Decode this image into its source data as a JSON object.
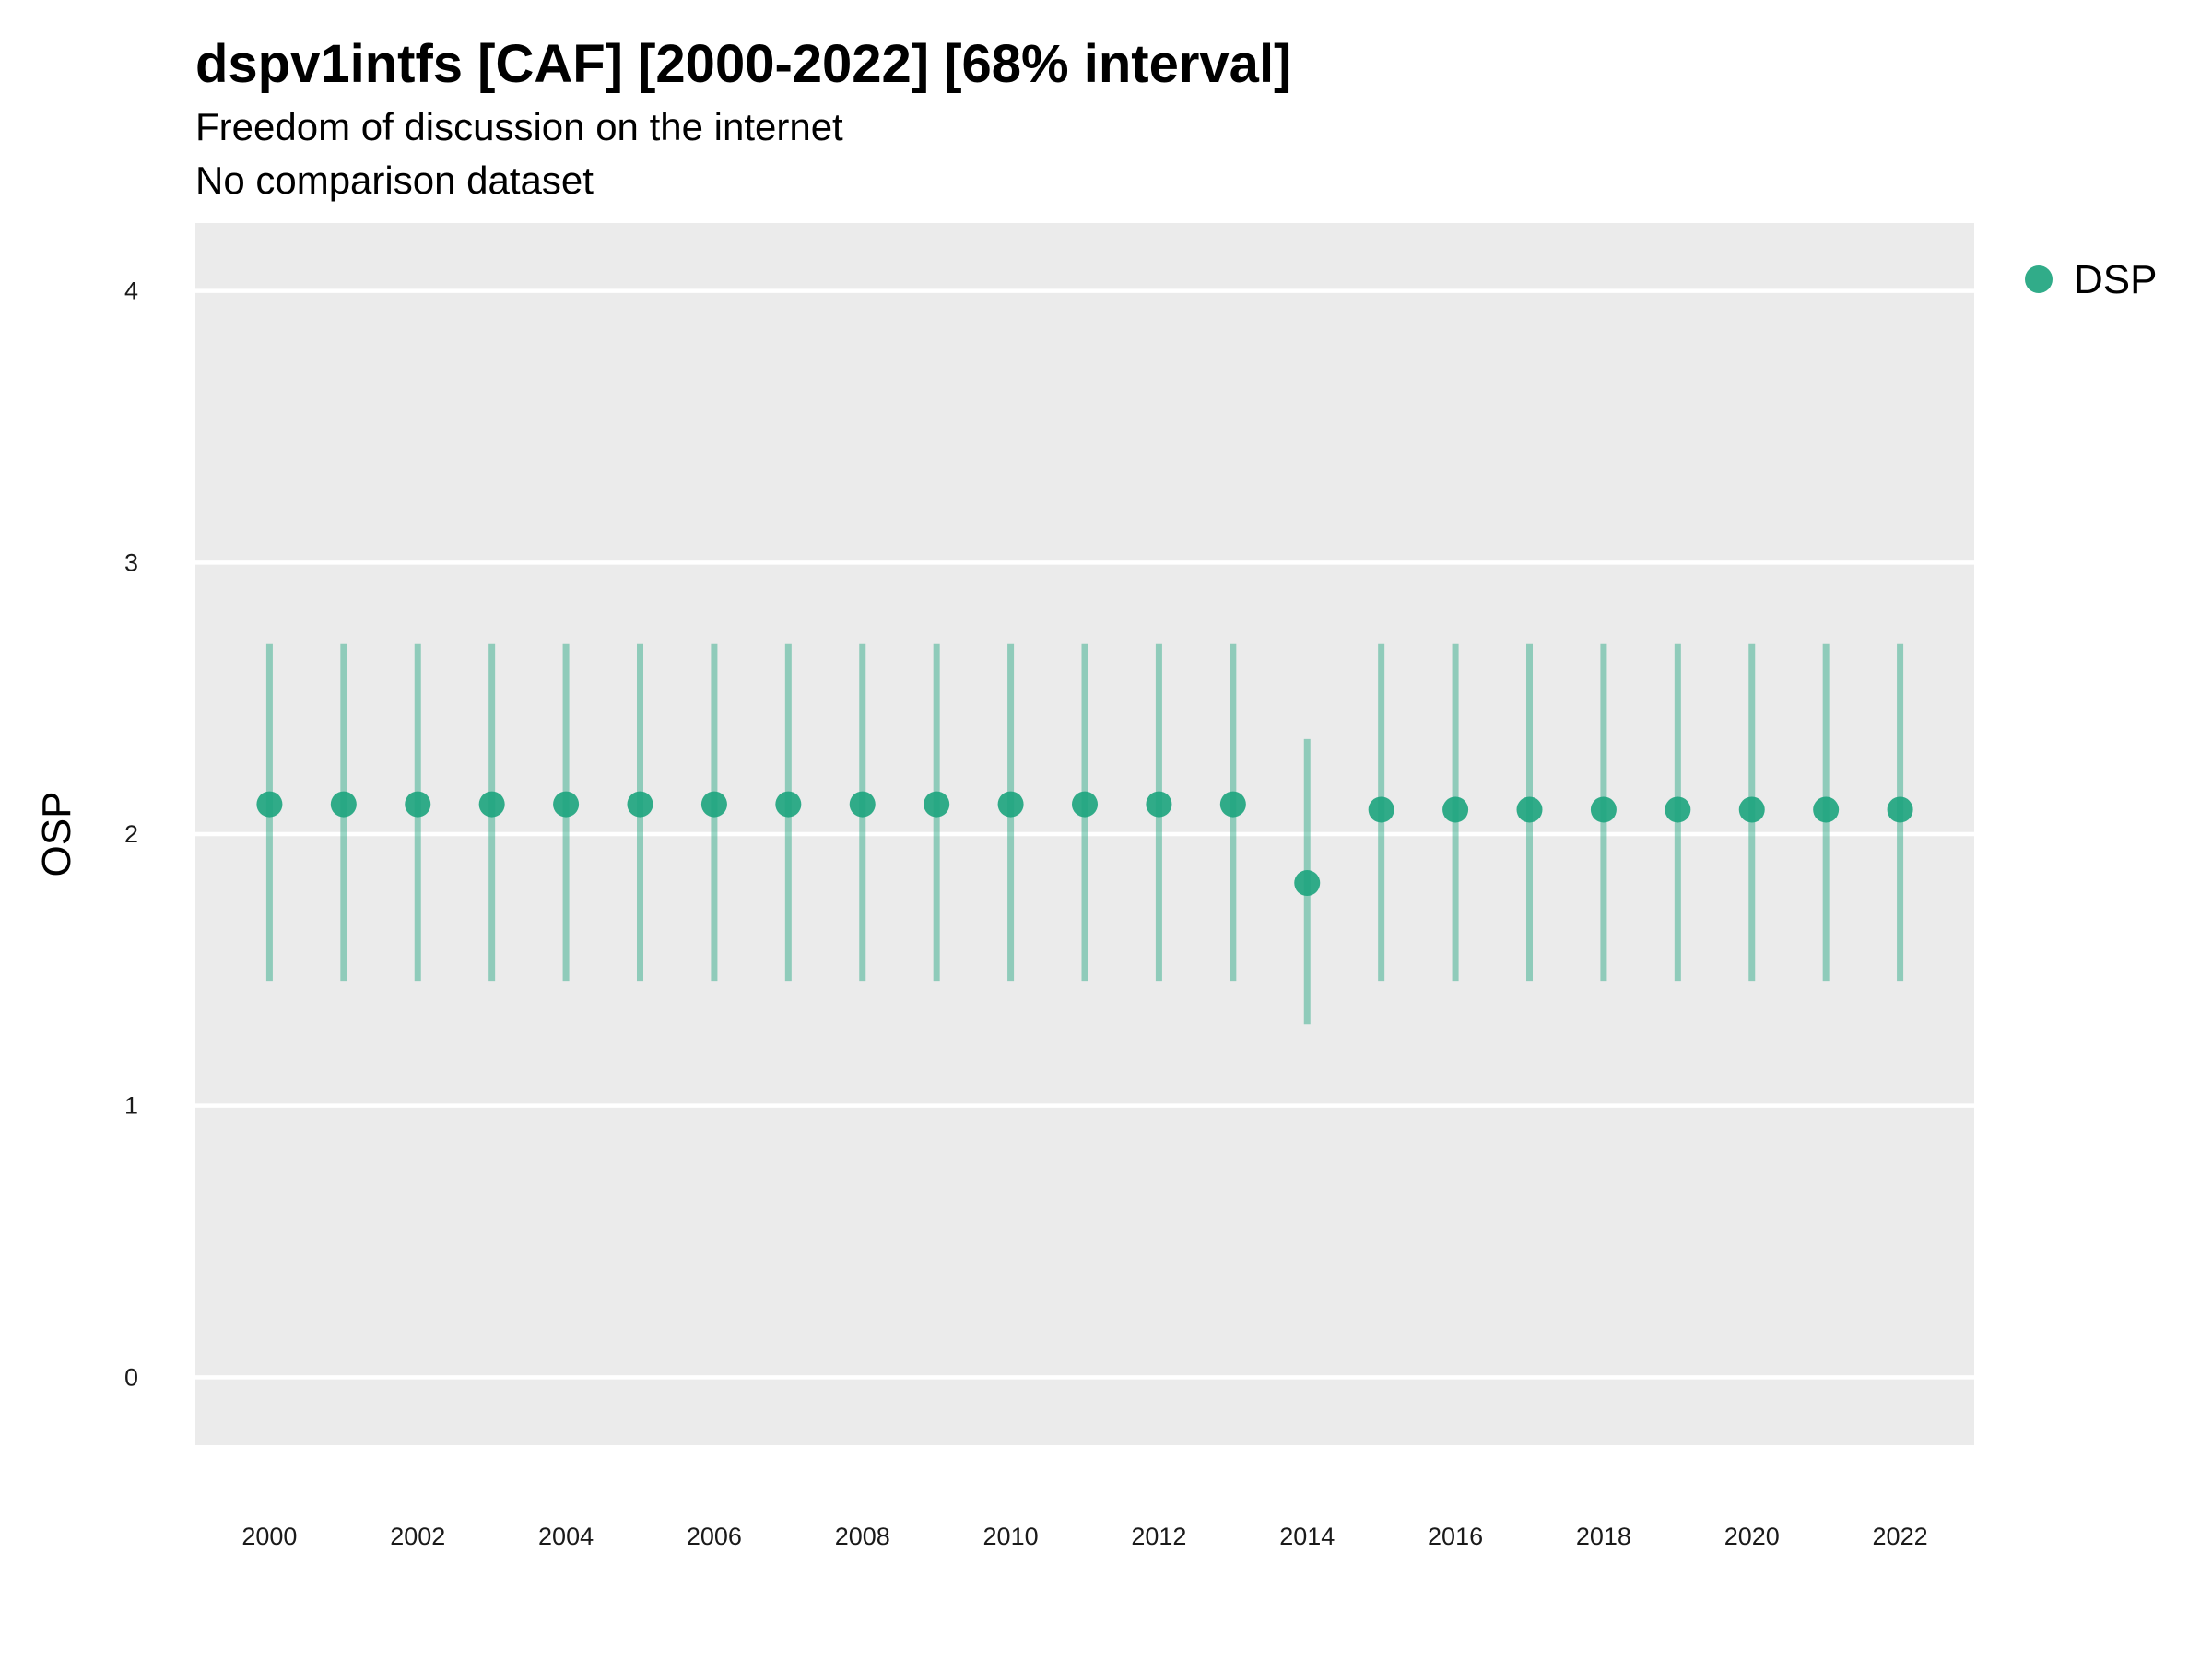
{
  "chart_data": {
    "type": "scatter",
    "title": "dspv1intfs [CAF] [2000-2022] [68% interval]",
    "subtitle": "Freedom of discussion on the internet",
    "subtitle2": "No comparison dataset",
    "xlabel": "",
    "ylabel": "OSP",
    "xlim": [
      1999,
      2023
    ],
    "ylim": [
      -0.25,
      4.25
    ],
    "x_ticks": [
      "2000",
      "2002",
      "2004",
      "2006",
      "2008",
      "2010",
      "2012",
      "2014",
      "2016",
      "2018",
      "2020",
      "2022"
    ],
    "y_ticks": [
      "0",
      "1",
      "2",
      "3",
      "4"
    ],
    "grid": true,
    "legend_position": "right",
    "colors": {
      "point": "#1fa57f",
      "interval": "#1fa57f",
      "panel": "#ebebeb",
      "grid": "#ffffff"
    },
    "series": [
      {
        "name": "DSP",
        "x": [
          2000,
          2001,
          2002,
          2003,
          2004,
          2005,
          2006,
          2007,
          2008,
          2009,
          2010,
          2011,
          2012,
          2013,
          2014,
          2015,
          2016,
          2017,
          2018,
          2019,
          2020,
          2021,
          2022
        ],
        "y": [
          2.11,
          2.11,
          2.11,
          2.11,
          2.11,
          2.11,
          2.11,
          2.11,
          2.11,
          2.11,
          2.11,
          2.11,
          2.11,
          2.11,
          1.82,
          2.09,
          2.09,
          2.09,
          2.09,
          2.09,
          2.09,
          2.09,
          2.09
        ],
        "lower": [
          1.46,
          1.46,
          1.46,
          1.46,
          1.46,
          1.46,
          1.46,
          1.46,
          1.46,
          1.46,
          1.46,
          1.46,
          1.46,
          1.46,
          1.3,
          1.46,
          1.46,
          1.46,
          1.46,
          1.46,
          1.46,
          1.46,
          1.46
        ],
        "upper": [
          2.7,
          2.7,
          2.7,
          2.7,
          2.7,
          2.7,
          2.7,
          2.7,
          2.7,
          2.7,
          2.7,
          2.7,
          2.7,
          2.7,
          2.35,
          2.7,
          2.7,
          2.7,
          2.7,
          2.7,
          2.7,
          2.7,
          2.7
        ]
      }
    ]
  }
}
